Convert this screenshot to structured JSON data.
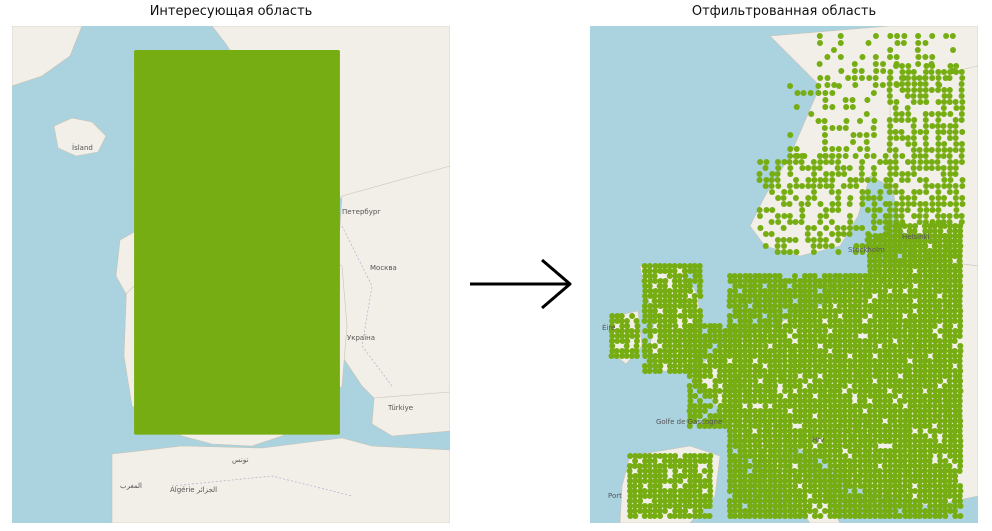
{
  "left_panel": {
    "title": "Интересующая область",
    "labels": {
      "iceland": "Ísland",
      "moscow": "Москва",
      "ukraine": "Україна",
      "turkey": "Türkiye",
      "spb": "Петербург",
      "algeria": "Algérie\nالجزائر",
      "tunisia": "تونس",
      "morocco": "المغرب"
    }
  },
  "right_panel": {
    "title": "Отфильтрованная область",
    "labels": {
      "helsinki": "Helsinki",
      "stockholm": "Stockholm",
      "eire": "Éire",
      "gascogne": "Golfe de\nGascogne",
      "hrv": "Hrv",
      "portugal": "Port"
    }
  },
  "colors": {
    "water": "#aad3df",
    "land": "#f2efe9",
    "points": "#76ad12",
    "border": "#b8a9c6"
  },
  "arrow": {
    "direction": "right"
  }
}
